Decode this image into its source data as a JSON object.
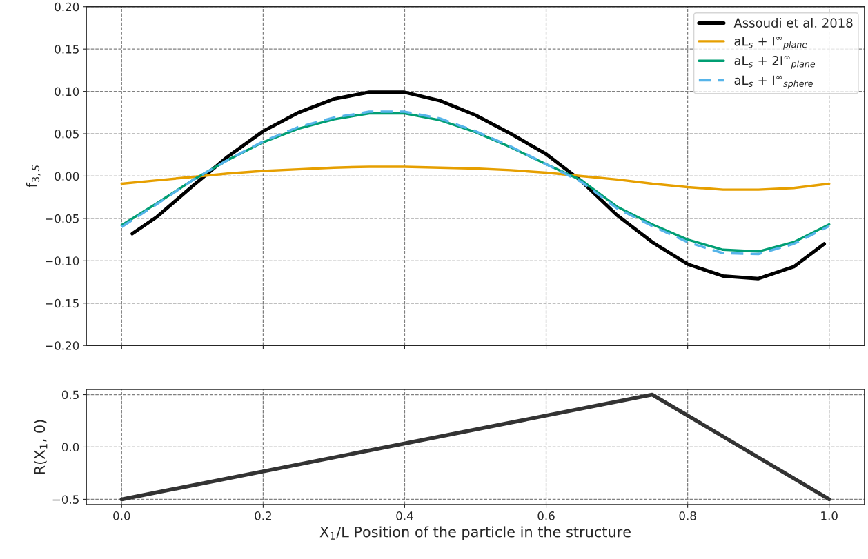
{
  "chart_data": [
    {
      "type": "line",
      "ylabel": "f$_{3,S}$",
      "xlim": [
        -0.05,
        1.05
      ],
      "ylim": [
        -0.2,
        0.2
      ],
      "xticks": [
        0,
        0.2,
        0.4,
        0.6,
        0.8,
        1.0
      ],
      "yticks": [
        {
          "value": -0.2,
          "label": "−0.20"
        },
        {
          "value": -0.15,
          "label": "−0.15"
        },
        {
          "value": -0.1,
          "label": "−0.10"
        },
        {
          "value": -0.05,
          "label": "−0.05"
        },
        {
          "value": 0,
          "label": "0.00"
        },
        {
          "value": 0.05,
          "label": "0.05"
        },
        {
          "value": 0.1,
          "label": "0.10"
        },
        {
          "value": 0.15,
          "label": "0.15"
        },
        {
          "value": 0.2,
          "label": "0.20"
        }
      ],
      "tick_labels": "y",
      "grid": true,
      "legend": "top right",
      "series": [
        {
          "name": "Assoudi et al. 2018",
          "color": "#000000",
          "line_style": "solid",
          "x": [
            0.015,
            0.05,
            0.1,
            0.15,
            0.2,
            0.25,
            0.3,
            0.35,
            0.4,
            0.45,
            0.5,
            0.55,
            0.6,
            0.65,
            0.7,
            0.75,
            0.8,
            0.85,
            0.9,
            0.95,
            0.993
          ],
          "values": [
            -0.068,
            -0.048,
            -0.012,
            0.023,
            0.053,
            0.075,
            0.091,
            0.099,
            0.099,
            0.089,
            0.072,
            0.05,
            0.026,
            -0.006,
            -0.046,
            -0.078,
            -0.104,
            -0.118,
            -0.121,
            -0.107,
            -0.08
          ]
        },
        {
          "name": "aL$_{s}$ + I$^{∞}$$_{plane}$",
          "color": "#e69f00",
          "line_style": "solid",
          "x": [
            0,
            0.05,
            0.1,
            0.15,
            0.2,
            0.25,
            0.3,
            0.35,
            0.4,
            0.45,
            0.5,
            0.55,
            0.6,
            0.65,
            0.7,
            0.75,
            0.8,
            0.85,
            0.9,
            0.95,
            1.0
          ],
          "values": [
            -0.009,
            -0.005,
            -0.001,
            0.003,
            0.006,
            0.008,
            0.01,
            0.011,
            0.011,
            0.01,
            0.009,
            0.007,
            0.004,
            0.0,
            -0.004,
            -0.009,
            -0.013,
            -0.016,
            -0.016,
            -0.014,
            -0.009
          ]
        },
        {
          "name": "aL$_{s}$ + 2I$^{∞}$$_{plane}$",
          "color": "#009e73",
          "line_style": "solid",
          "x": [
            0,
            0.05,
            0.1,
            0.15,
            0.2,
            0.25,
            0.3,
            0.35,
            0.4,
            0.45,
            0.5,
            0.55,
            0.6,
            0.65,
            0.7,
            0.75,
            0.8,
            0.85,
            0.9,
            0.95,
            1.0
          ],
          "values": [
            -0.058,
            -0.032,
            -0.005,
            0.019,
            0.04,
            0.056,
            0.067,
            0.074,
            0.074,
            0.066,
            0.052,
            0.034,
            0.014,
            -0.005,
            -0.036,
            -0.057,
            -0.075,
            -0.087,
            -0.089,
            -0.078,
            -0.057
          ]
        },
        {
          "name": "aL$_{s}$ + I$^{∞}$$_{sphere}$",
          "color": "#56b4e9",
          "line_style": "dashed",
          "x": [
            0,
            0.05,
            0.1,
            0.15,
            0.2,
            0.25,
            0.3,
            0.35,
            0.4,
            0.45,
            0.5,
            0.55,
            0.6,
            0.65,
            0.7,
            0.75,
            0.8,
            0.85,
            0.9,
            0.95,
            1.0
          ],
          "values": [
            -0.06,
            -0.033,
            -0.005,
            0.019,
            0.041,
            0.058,
            0.069,
            0.076,
            0.076,
            0.068,
            0.053,
            0.035,
            0.014,
            -0.007,
            -0.038,
            -0.059,
            -0.078,
            -0.091,
            -0.092,
            -0.08,
            -0.059
          ]
        }
      ]
    },
    {
      "type": "line",
      "ylabel": "R(X$_{1}$, 0)",
      "xlabel": "X$_{1}$/L Position of the particle in the structure",
      "xlim": [
        -0.05,
        1.05
      ],
      "ylim": [
        -0.55,
        0.55
      ],
      "xticks": [
        {
          "value": 0,
          "label": "0.0"
        },
        {
          "value": 0.2,
          "label": "0.2"
        },
        {
          "value": 0.4,
          "label": "0.4"
        },
        {
          "value": 0.6,
          "label": "0.6"
        },
        {
          "value": 0.8,
          "label": "0.8"
        },
        {
          "value": 1.0,
          "label": "1.0"
        }
      ],
      "yticks": [
        {
          "value": -0.5,
          "label": "−0.5"
        },
        {
          "value": 0,
          "label": "0.0"
        },
        {
          "value": 0.5,
          "label": "0.5"
        }
      ],
      "grid": true,
      "series": [
        {
          "color": "#333333",
          "line_style": "solid",
          "x": [
            0,
            0.75,
            1.0
          ],
          "values": [
            -0.5,
            0.5,
            -0.5
          ]
        }
      ]
    }
  ]
}
